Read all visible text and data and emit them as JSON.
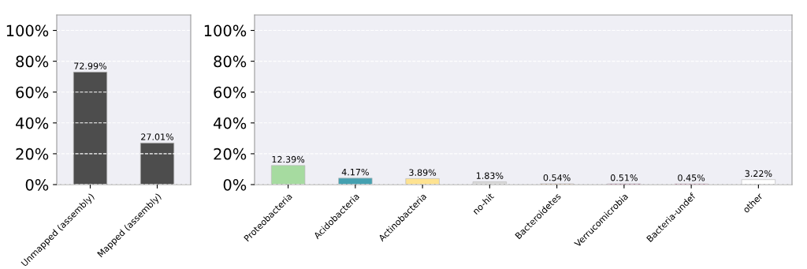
{
  "chart_data": [
    {
      "type": "bar",
      "categories": [
        "Unmapped (assembly)",
        "Mapped (assembly)"
      ],
      "values": [
        72.99,
        27.01
      ],
      "colors": [
        "#4d4d4d",
        "#4d4d4d"
      ],
      "value_labels": [
        "72.99%",
        "27.01%"
      ],
      "ylim": [
        0,
        110
      ],
      "yticks": [
        {
          "value": 0,
          "label": "0%"
        },
        {
          "value": 20,
          "label": "20%"
        },
        {
          "value": 40,
          "label": "40%"
        },
        {
          "value": 60,
          "label": "60%"
        },
        {
          "value": 80,
          "label": "80%"
        },
        {
          "value": 100,
          "label": "100%"
        }
      ],
      "grid": "y"
    },
    {
      "type": "bar",
      "categories": [
        "Proteobacteria",
        "Acidobacteria",
        "Actinobacteria",
        "no-hit",
        "Bacteroidetes",
        "Verrucomicrobia",
        "Bacteria-undef",
        "other"
      ],
      "values": [
        12.39,
        4.17,
        3.89,
        1.83,
        0.54,
        0.51,
        0.45,
        3.22
      ],
      "colors": [
        "#a6dba0",
        "#44a0b0",
        "#fee391",
        "#d9d9d9",
        "#fdae6b",
        "#c51b7d",
        "#e7298a",
        "#ffffff"
      ],
      "value_labels": [
        "12.39%",
        "4.17%",
        "3.89%",
        "1.83%",
        "0.54%",
        "0.51%",
        "0.45%",
        "3.22%"
      ],
      "ylim": [
        0,
        110
      ],
      "yticks": [
        {
          "value": 0,
          "label": "0%"
        },
        {
          "value": 20,
          "label": "20%"
        },
        {
          "value": 40,
          "label": "40%"
        },
        {
          "value": 60,
          "label": "60%"
        },
        {
          "value": 80,
          "label": "80%"
        },
        {
          "value": 100,
          "label": "100%"
        }
      ],
      "grid": "y"
    }
  ]
}
